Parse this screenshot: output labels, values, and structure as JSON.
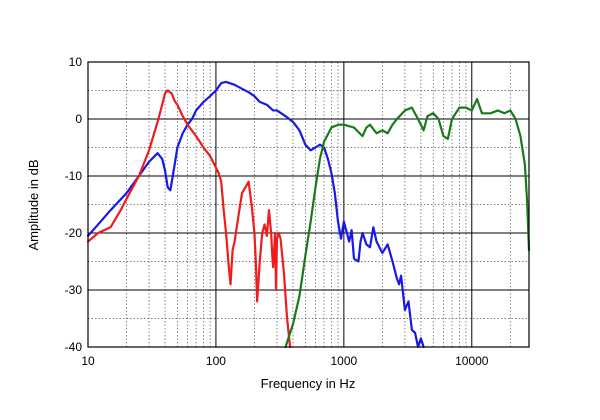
{
  "chart_data": {
    "type": "line",
    "xlabel": "Frequency in Hz",
    "ylabel": "Amplitude in dB",
    "x_scale": "log",
    "xlim": [
      10,
      28000
    ],
    "ylim": [
      -40,
      10
    ],
    "grid": true,
    "x_ticks": [
      {
        "value": 10,
        "label": "10"
      },
      {
        "value": 100,
        "label": "100"
      },
      {
        "value": 1000,
        "label": "1000"
      },
      {
        "value": 10000,
        "label": "10000"
      }
    ],
    "y_ticks": [
      {
        "value": 10,
        "label": "10"
      },
      {
        "value": 0,
        "label": "0"
      },
      {
        "value": -10,
        "label": "-10"
      },
      {
        "value": -20,
        "label": "-20"
      },
      {
        "value": -30,
        "label": "-30"
      },
      {
        "value": -40,
        "label": "-40"
      }
    ],
    "series": [
      {
        "color": "#1818e8",
        "points": [
          [
            10,
            -20.5
          ],
          [
            12,
            -18.5
          ],
          [
            15,
            -16
          ],
          [
            20,
            -13
          ],
          [
            25,
            -10
          ],
          [
            30,
            -7.5
          ],
          [
            35,
            -6
          ],
          [
            38,
            -7
          ],
          [
            40,
            -9
          ],
          [
            42,
            -12
          ],
          [
            44,
            -12.5
          ],
          [
            46,
            -10
          ],
          [
            50,
            -5
          ],
          [
            55,
            -2.5
          ],
          [
            60,
            -1
          ],
          [
            65,
            0
          ],
          [
            70,
            1.5
          ],
          [
            80,
            3
          ],
          [
            90,
            4
          ],
          [
            100,
            5
          ],
          [
            110,
            6.3
          ],
          [
            120,
            6.5
          ],
          [
            140,
            6
          ],
          [
            160,
            5.3
          ],
          [
            180,
            4.7
          ],
          [
            200,
            4
          ],
          [
            220,
            3
          ],
          [
            250,
            2.5
          ],
          [
            280,
            1.5
          ],
          [
            300,
            1.5
          ],
          [
            350,
            0.5
          ],
          [
            400,
            -0.5
          ],
          [
            450,
            -2
          ],
          [
            500,
            -4.5
          ],
          [
            550,
            -5.5
          ],
          [
            600,
            -5
          ],
          [
            650,
            -4.5
          ],
          [
            700,
            -5
          ],
          [
            750,
            -7
          ],
          [
            800,
            -9.5
          ],
          [
            850,
            -13
          ],
          [
            900,
            -18
          ],
          [
            950,
            -21
          ],
          [
            1000,
            -18
          ],
          [
            1100,
            -21.5
          ],
          [
            1150,
            -19.5
          ],
          [
            1200,
            -24.5
          ],
          [
            1300,
            -25
          ],
          [
            1350,
            -21.5
          ],
          [
            1400,
            -20
          ],
          [
            1500,
            -22
          ],
          [
            1600,
            -22.5
          ],
          [
            1700,
            -19
          ],
          [
            1800,
            -21.5
          ],
          [
            2000,
            -23.5
          ],
          [
            2200,
            -22
          ],
          [
            2400,
            -25
          ],
          [
            2600,
            -28
          ],
          [
            2700,
            -29
          ],
          [
            2800,
            -27.5
          ],
          [
            3000,
            -33.5
          ],
          [
            3200,
            -32
          ],
          [
            3400,
            -37
          ],
          [
            3600,
            -37.5
          ],
          [
            3800,
            -40
          ],
          [
            4000,
            -38.5
          ],
          [
            4200,
            -40
          ]
        ]
      },
      {
        "color": "#ee1c1c",
        "points": [
          [
            10,
            -21.5
          ],
          [
            12,
            -20
          ],
          [
            15,
            -19
          ],
          [
            18,
            -16
          ],
          [
            20,
            -14
          ],
          [
            25,
            -10
          ],
          [
            30,
            -5.5
          ],
          [
            35,
            -0.5
          ],
          [
            38,
            2.5
          ],
          [
            40,
            4.5
          ],
          [
            42,
            5
          ],
          [
            45,
            4.5
          ],
          [
            48,
            3
          ],
          [
            50,
            2.5
          ],
          [
            55,
            0.5
          ],
          [
            60,
            -1
          ],
          [
            70,
            -3
          ],
          [
            80,
            -5
          ],
          [
            90,
            -6.5
          ],
          [
            100,
            -8.5
          ],
          [
            105,
            -9.5
          ],
          [
            110,
            -11
          ],
          [
            115,
            -16
          ],
          [
            120,
            -20
          ],
          [
            125,
            -25
          ],
          [
            130,
            -29
          ],
          [
            135,
            -23
          ],
          [
            140,
            -21.5
          ],
          [
            150,
            -17
          ],
          [
            160,
            -13
          ],
          [
            170,
            -12
          ],
          [
            180,
            -11
          ],
          [
            190,
            -15
          ],
          [
            200,
            -20
          ],
          [
            205,
            -25
          ],
          [
            210,
            -32
          ],
          [
            220,
            -25
          ],
          [
            230,
            -20
          ],
          [
            240,
            -18.5
          ],
          [
            250,
            -20.5
          ],
          [
            260,
            -16
          ],
          [
            270,
            -20
          ],
          [
            275,
            -23.5
          ],
          [
            280,
            -26
          ],
          [
            290,
            -20
          ],
          [
            295,
            -30
          ],
          [
            300,
            -21
          ],
          [
            310,
            -20
          ],
          [
            320,
            -21
          ],
          [
            340,
            -27
          ],
          [
            360,
            -35
          ],
          [
            380,
            -40
          ]
        ]
      },
      {
        "color": "#1a7a1a",
        "points": [
          [
            350,
            -40
          ],
          [
            400,
            -36
          ],
          [
            450,
            -31
          ],
          [
            500,
            -24
          ],
          [
            550,
            -18
          ],
          [
            600,
            -12
          ],
          [
            650,
            -7
          ],
          [
            700,
            -4
          ],
          [
            800,
            -1.5
          ],
          [
            900,
            -1
          ],
          [
            1000,
            -1
          ],
          [
            1200,
            -1.5
          ],
          [
            1400,
            -3
          ],
          [
            1500,
            -1.5
          ],
          [
            1600,
            -1
          ],
          [
            1800,
            -2.5
          ],
          [
            2000,
            -2
          ],
          [
            2200,
            -2.5
          ],
          [
            2400,
            -1
          ],
          [
            2600,
            0
          ],
          [
            3000,
            1.5
          ],
          [
            3400,
            2
          ],
          [
            3800,
            0
          ],
          [
            4000,
            -1
          ],
          [
            4200,
            -2
          ],
          [
            4500,
            0.5
          ],
          [
            5000,
            1
          ],
          [
            5500,
            0
          ],
          [
            6000,
            -3
          ],
          [
            6500,
            -3.5
          ],
          [
            7000,
            0
          ],
          [
            8000,
            2
          ],
          [
            9000,
            2
          ],
          [
            10000,
            1.5
          ],
          [
            11000,
            3.5
          ],
          [
            12000,
            1
          ],
          [
            14000,
            1
          ],
          [
            16000,
            1.5
          ],
          [
            18000,
            1
          ],
          [
            20000,
            1.5
          ],
          [
            22000,
            0
          ],
          [
            24000,
            -3
          ],
          [
            26000,
            -8
          ],
          [
            27000,
            -14
          ],
          [
            28000,
            -23
          ]
        ]
      }
    ]
  }
}
